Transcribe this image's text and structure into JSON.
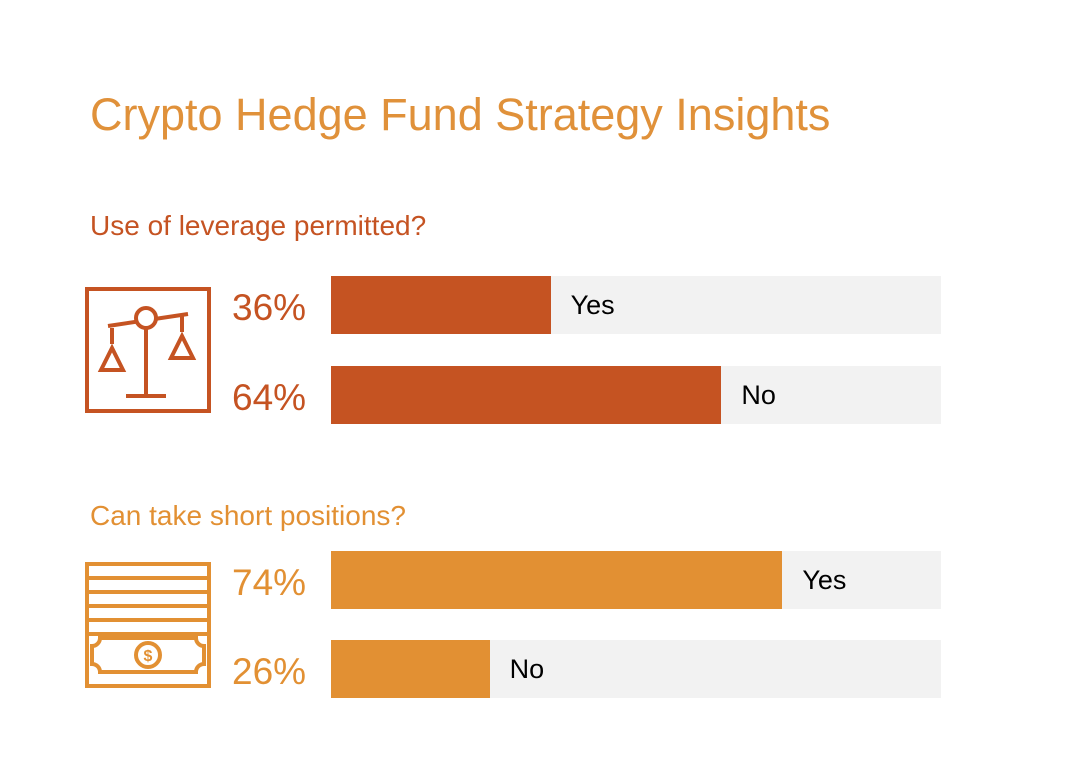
{
  "title": "Crypto Hedge Fund Strategy Insights",
  "colors": {
    "title": "#e0913a",
    "leverage": "#c55322",
    "short": "#e29033",
    "track": "#f2f2f2"
  },
  "chart_data": [
    {
      "type": "bar",
      "title": "Use of leverage permitted?",
      "icon": "balance-scale-icon",
      "categories": [
        "Yes",
        "No"
      ],
      "values": [
        36,
        64
      ],
      "value_labels": [
        "36%",
        "64%"
      ],
      "unit": "%",
      "xlim": [
        0,
        100
      ]
    },
    {
      "type": "bar",
      "title": "Can take short positions?",
      "icon": "cash-stack-icon",
      "categories": [
        "Yes",
        "No"
      ],
      "values": [
        74,
        26
      ],
      "value_labels": [
        "74%",
        "26%"
      ],
      "unit": "%",
      "xlim": [
        0,
        100
      ]
    }
  ]
}
